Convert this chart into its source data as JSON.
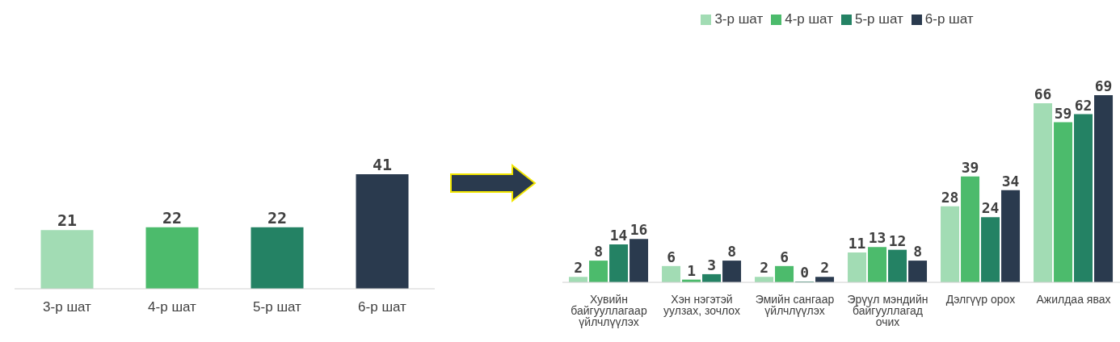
{
  "chart_data": [
    {
      "type": "bar",
      "categories": [
        "3-р шат",
        "4-р шат",
        "5-р шат",
        "6-р шат"
      ],
      "values": [
        21,
        22,
        22,
        41
      ],
      "colors": [
        "#a2dcb4",
        "#4cbb6c",
        "#248264",
        "#2a3a4e"
      ],
      "data_labels": true,
      "grid": false
    },
    {
      "type": "bar",
      "categories": [
        "Хувийн байгууллагаар үйлчлүүлэх",
        "Хэн нэгэтэй уулзах, зочлох",
        "Эмийн сангаар үйлчлүүлэх",
        "Эрүүл мэндийн байгууллагад очих",
        "Дэлгүүр орох",
        "Ажилдаа явах"
      ],
      "series": [
        {
          "name": "3-р шат",
          "color": "#a2dcb4",
          "values": [
            2,
            6,
            2,
            11,
            28,
            66
          ]
        },
        {
          "name": "4-р шат",
          "color": "#4cbb6c",
          "values": [
            8,
            1,
            6,
            13,
            39,
            59
          ]
        },
        {
          "name": "5-р шат",
          "color": "#248264",
          "values": [
            14,
            3,
            0,
            12,
            24,
            62
          ]
        },
        {
          "name": "6-р шат",
          "color": "#2a3a4e",
          "values": [
            16,
            8,
            2,
            8,
            34,
            69
          ]
        }
      ],
      "data_labels": true,
      "legend": "top",
      "grid": false
    }
  ]
}
